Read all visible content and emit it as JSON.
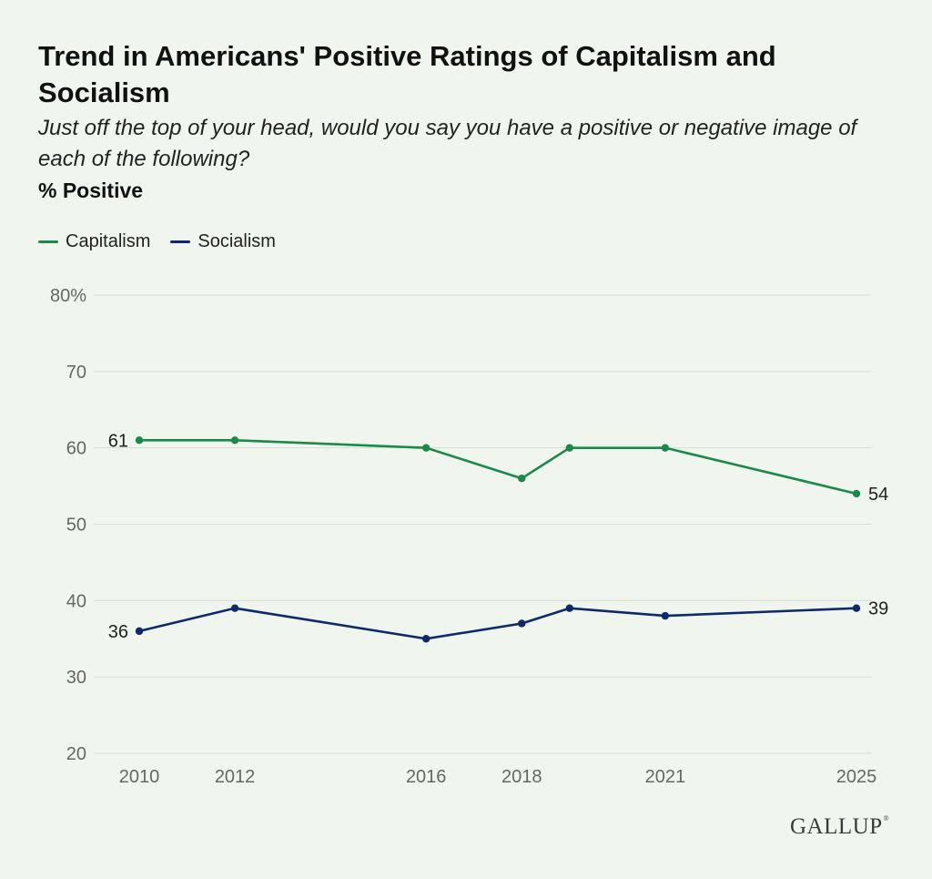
{
  "title": "Trend in Americans' Positive Ratings of Capitalism and Socialism",
  "subtitle": "Just off the top of your head, would you say you have a positive or negative image of each of the following?",
  "measure": "% Positive",
  "logo": "GALLUP",
  "logo_mark": "®",
  "colors": {
    "background": "#f0f6ee",
    "capitalism": "#1a8a4a",
    "socialism": "#0e2a6b",
    "grid": "#d8ddd6",
    "axis_text": "#666666"
  },
  "chart_data": {
    "type": "line",
    "x_tick_labels": [
      "2010",
      "2012",
      "2016",
      "2018",
      "2021",
      "2025"
    ],
    "y_tick_labels": [
      "80%",
      "70",
      "60",
      "50",
      "40",
      "30",
      "20"
    ],
    "ylim": [
      20,
      80
    ],
    "grid": true,
    "legend": "top-left",
    "series": [
      {
        "name": "Capitalism",
        "color": "#1a8a4a",
        "points": [
          {
            "x": 2010,
            "y": 61
          },
          {
            "x": 2012,
            "y": 61
          },
          {
            "x": 2016,
            "y": 60
          },
          {
            "x": 2018,
            "y": 56
          },
          {
            "x": 2019,
            "y": 60
          },
          {
            "x": 2021,
            "y": 60
          },
          {
            "x": 2025,
            "y": 54
          }
        ],
        "start_label": "61",
        "end_label": "54"
      },
      {
        "name": "Socialism",
        "color": "#0e2a6b",
        "points": [
          {
            "x": 2010,
            "y": 36
          },
          {
            "x": 2012,
            "y": 39
          },
          {
            "x": 2016,
            "y": 35
          },
          {
            "x": 2018,
            "y": 37
          },
          {
            "x": 2019,
            "y": 39
          },
          {
            "x": 2021,
            "y": 38
          },
          {
            "x": 2025,
            "y": 39
          }
        ],
        "start_label": "36",
        "end_label": "39"
      }
    ]
  }
}
